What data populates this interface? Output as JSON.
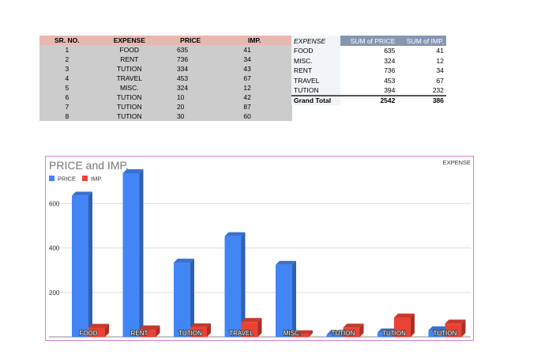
{
  "table": {
    "headers": [
      "SR. NO.",
      "EXPENSE",
      "PRICE",
      "IMP."
    ],
    "rows": [
      [
        "1",
        "FOOD",
        "635",
        "41"
      ],
      [
        "2",
        "RENT",
        "736",
        "34"
      ],
      [
        "3",
        "TUTION",
        "334",
        "43"
      ],
      [
        "4",
        "TRAVEL",
        "453",
        "67"
      ],
      [
        "5",
        "MISC.",
        "324",
        "12"
      ],
      [
        "6",
        "TUTION",
        "10",
        "42"
      ],
      [
        "7",
        "TUTION",
        "20",
        "87"
      ],
      [
        "8",
        "TUTION",
        "30",
        "60"
      ]
    ]
  },
  "pivot": {
    "headers": [
      "EXPENSE",
      "SUM of PRICE",
      "SUM of IMP."
    ],
    "rows": [
      [
        "FOOD",
        "635",
        "41"
      ],
      [
        "MISC.",
        "324",
        "12"
      ],
      [
        "RENT",
        "736",
        "34"
      ],
      [
        "TRAVEL",
        "453",
        "67"
      ],
      [
        "TUTION",
        "394",
        "232"
      ]
    ],
    "grand_total": [
      "Grand Total",
      "2542",
      "386"
    ]
  },
  "colors": {
    "header_bg": "#e6b8af",
    "cell_bg": "#cccccc",
    "pivot_header_bg": "#8596b1",
    "pivot_label_bg": "#f1f4f8",
    "chart_border": "#d67fd6",
    "price_series": "#4285f4",
    "imp_series": "#ea4335"
  },
  "chart_data": {
    "type": "bar",
    "title": "PRICE and IMP.",
    "xlabel": "EXPENSE",
    "ylabel": "",
    "categories": [
      "FOOD",
      "RENT",
      "TUTION",
      "TRAVEL",
      "MISC.",
      "TUTION",
      "TUTION",
      "TUTION"
    ],
    "series": [
      {
        "name": "PRICE",
        "values": [
          635,
          736,
          334,
          453,
          324,
          10,
          20,
          30
        ]
      },
      {
        "name": "IMP.",
        "values": [
          41,
          34,
          43,
          67,
          12,
          42,
          87,
          60
        ]
      }
    ],
    "yticks": [
      "200",
      "400",
      "600"
    ],
    "ylim": [
      0,
      800
    ],
    "grid": true,
    "legend_position": "top-left",
    "style": "3d"
  }
}
